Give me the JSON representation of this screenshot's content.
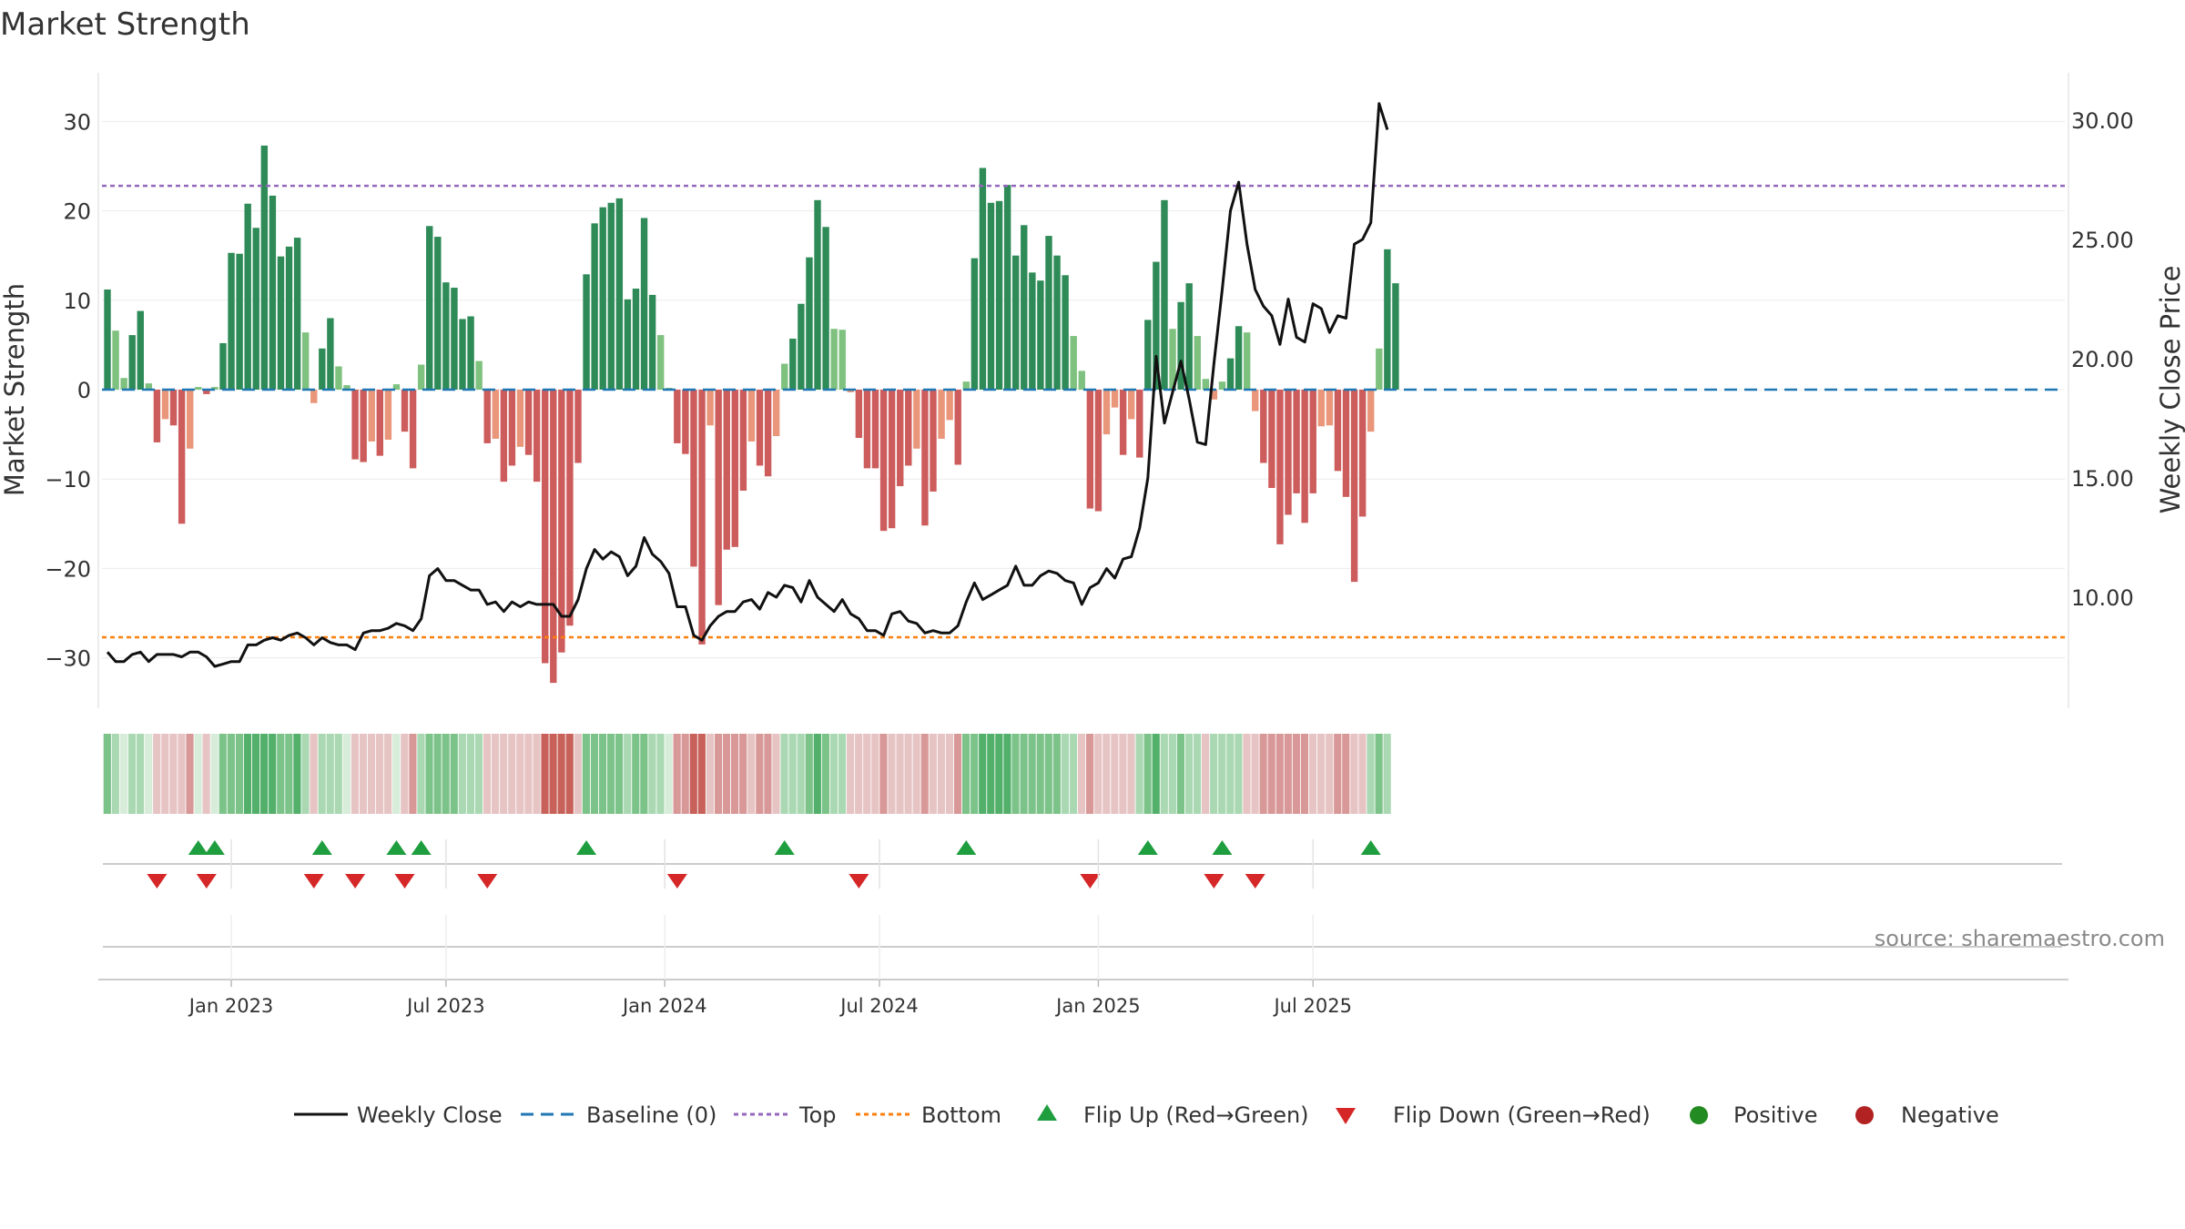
{
  "chart_data": {
    "type": "bar",
    "title": "Market Strength",
    "ylabel": "Market Strength",
    "y2label": "Weekly Close Price",
    "ylim": [
      -35,
      35
    ],
    "y2lim": [
      5.0,
      31.0
    ],
    "yticks": [
      30,
      20,
      10,
      0,
      -10,
      -20,
      -30
    ],
    "yticklabels": [
      "30",
      "20",
      "10",
      "0",
      "−10",
      "−20",
      "−30"
    ],
    "y2ticks": [
      30,
      25,
      20,
      15,
      10
    ],
    "y2ticklabels": [
      "30.00",
      "25.00",
      "20.00",
      "15.00",
      "10.00"
    ],
    "top_line": 22.8,
    "bottom_line": -27.7,
    "xticklabels": [
      "Jan 2023",
      "Jul 2023",
      "Jan 2024",
      "Jul 2024",
      "Jan 2025",
      "Jul 2025"
    ],
    "xtick_weeks": [
      15,
      41,
      67.5,
      93.5,
      120,
      146
    ],
    "strength": [
      11.2,
      6.6,
      1.3,
      6.1,
      8.8,
      0.7,
      -5.9,
      -3.3,
      -4.0,
      -15.0,
      -6.6,
      0.3,
      -0.5,
      0.3,
      5.2,
      15.3,
      15.2,
      20.8,
      18.1,
      27.3,
      21.7,
      14.9,
      16.0,
      17.0,
      6.4,
      -1.5,
      4.6,
      8.0,
      2.6,
      0.5,
      -7.8,
      -8.1,
      -5.8,
      -7.4,
      -5.6,
      0.6,
      -4.7,
      -8.8,
      2.8,
      18.3,
      17.1,
      12.0,
      11.4,
      7.9,
      8.2,
      3.2,
      -6.0,
      -5.5,
      -10.3,
      -8.5,
      -6.4,
      -7.3,
      -10.3,
      -30.6,
      -32.8,
      -29.4,
      -26.4,
      -8.2,
      12.9,
      18.6,
      20.4,
      20.9,
      21.4,
      10.1,
      11.3,
      19.2,
      10.6,
      6.1,
      0.2,
      -6.0,
      -7.2,
      -19.8,
      -28.5,
      -4.0,
      -24.1,
      -17.9,
      -17.6,
      -11.3,
      -5.8,
      -8.5,
      -9.7,
      -5.2,
      2.9,
      5.7,
      9.6,
      14.8,
      21.2,
      18.2,
      6.8,
      6.7,
      -0.3,
      -5.4,
      -8.8,
      -8.8,
      -15.8,
      -15.5,
      -10.8,
      -8.5,
      -6.6,
      -15.2,
      -11.4,
      -5.5,
      -3.4,
      -8.4,
      0.9,
      14.7,
      24.8,
      20.9,
      21.1,
      22.9,
      15.0,
      18.4,
      13.1,
      12.2,
      17.2,
      15.0,
      12.8,
      6.0,
      2.1,
      -13.3,
      -13.6,
      -5.0,
      -2.0,
      -7.3,
      -3.3,
      -7.6,
      7.8,
      14.3,
      21.2,
      6.8,
      9.8,
      11.9,
      6.0,
      1.2,
      -1.1,
      0.9,
      3.5,
      7.1,
      6.4,
      -2.4,
      -8.2,
      -11.0,
      -17.3,
      -14.0,
      -11.6,
      -14.9,
      -11.6,
      -4.1,
      -4.0,
      -9.1,
      -12.0,
      -21.5,
      -14.2,
      -4.7,
      4.6,
      15.7,
      11.9
    ],
    "weekly_close": [
      7.7,
      7.3,
      7.3,
      7.6,
      7.7,
      7.3,
      7.6,
      7.6,
      7.6,
      7.5,
      7.7,
      7.7,
      7.5,
      7.1,
      7.2,
      7.3,
      7.3,
      8.0,
      8.0,
      8.2,
      8.3,
      8.2,
      8.4,
      8.5,
      8.3,
      8.0,
      8.3,
      8.1,
      8.0,
      8.0,
      7.8,
      8.5,
      8.6,
      8.6,
      8.7,
      8.9,
      8.8,
      8.6,
      9.1,
      10.9,
      11.2,
      10.7,
      10.7,
      10.5,
      10.3,
      10.3,
      9.7,
      9.8,
      9.4,
      9.8,
      9.6,
      9.8,
      9.7,
      9.7,
      9.7,
      9.2,
      9.2,
      9.9,
      11.2,
      12.0,
      11.6,
      11.9,
      11.7,
      10.9,
      11.3,
      12.5,
      11.8,
      11.5,
      11.0,
      9.6,
      9.6,
      8.4,
      8.2,
      8.8,
      9.2,
      9.4,
      9.4,
      9.8,
      9.9,
      9.5,
      10.2,
      10.0,
      10.5,
      10.4,
      9.8,
      10.7,
      10.0,
      9.7,
      9.4,
      9.9,
      9.3,
      9.1,
      8.6,
      8.6,
      8.4,
      9.3,
      9.4,
      9.0,
      8.9,
      8.5,
      8.6,
      8.5,
      8.5,
      8.8,
      9.8,
      10.6,
      9.9,
      10.1,
      10.3,
      10.5,
      11.3,
      10.5,
      10.5,
      10.9,
      11.1,
      11.0,
      10.7,
      10.6,
      9.7,
      10.4,
      10.6,
      11.2,
      10.8,
      11.6,
      11.7,
      12.9,
      15.0,
      20.1,
      17.3,
      18.6,
      19.9,
      18.3,
      16.5,
      16.4,
      19.8,
      22.9,
      26.2,
      27.4,
      24.8,
      22.9,
      22.2,
      21.8,
      20.6,
      22.5,
      20.9,
      20.7,
      22.3,
      22.1,
      21.1,
      21.8,
      21.7,
      24.8,
      25.0,
      25.7,
      30.7,
      29.6
    ],
    "regime_strength": [
      2,
      1,
      0,
      1,
      1,
      0,
      -1,
      -1,
      -1,
      -1,
      -2,
      0,
      -1,
      0,
      2,
      2,
      2,
      3,
      3,
      3,
      3,
      2,
      2,
      3,
      1,
      -1,
      1,
      1,
      1,
      0,
      -1,
      -1,
      -1,
      -1,
      -1,
      0,
      -1,
      -2,
      1,
      2,
      2,
      2,
      2,
      1,
      1,
      1,
      -1,
      -1,
      -1,
      -1,
      -1,
      -1,
      -1,
      -3,
      -3,
      -3,
      -3,
      -1,
      2,
      2,
      2,
      2,
      2,
      1,
      2,
      2,
      1,
      1,
      0,
      -2,
      -2,
      -3,
      -3,
      -1,
      -2,
      -2,
      -2,
      -2,
      -1,
      -2,
      -2,
      -1,
      1,
      1,
      1,
      2,
      3,
      2,
      1,
      1,
      -1,
      -1,
      -1,
      -1,
      -2,
      -1,
      -1,
      -1,
      -1,
      -2,
      -1,
      -1,
      -1,
      -2,
      2,
      2,
      3,
      3,
      3,
      3,
      2,
      2,
      2,
      2,
      2,
      2,
      1,
      1,
      -1,
      -2,
      -1,
      -1,
      -1,
      -1,
      -1,
      1,
      2,
      3,
      1,
      1,
      2,
      1,
      1,
      -1,
      1,
      1,
      1,
      1,
      -1,
      -1,
      -2,
      -2,
      -2,
      -2,
      -2,
      -2,
      -1,
      -1,
      -1,
      -2,
      -2,
      -1,
      -1,
      1,
      2,
      1
    ],
    "flip_up_weeks": [
      11,
      13,
      26,
      35,
      38,
      58,
      82,
      104,
      126,
      135,
      153
    ],
    "flip_down_weeks": [
      6,
      12,
      25,
      30,
      36,
      46,
      69,
      91,
      119,
      134,
      139
    ],
    "legend": [
      "Weekly Close",
      "Baseline (0)",
      "Top",
      "Bottom",
      "Flip Up (Red→Green)",
      "Flip Down (Green→Red)",
      "Positive",
      "Negative"
    ],
    "colors": {
      "pos_strong": "#2e8b57",
      "pos_light": "#7fc17f",
      "neg_strong": "#cd5c5c",
      "neg_light": "#e9967a",
      "close": "#111111",
      "baseline": "#1f77b4",
      "top": "#9467bd",
      "bottom": "#ff7f0e",
      "flip_up": "#1e9e3e",
      "flip_down": "#d62728",
      "positive_marker": "#228b22",
      "negative_marker": "#b22222"
    }
  },
  "source": "source: sharemaestro.com"
}
